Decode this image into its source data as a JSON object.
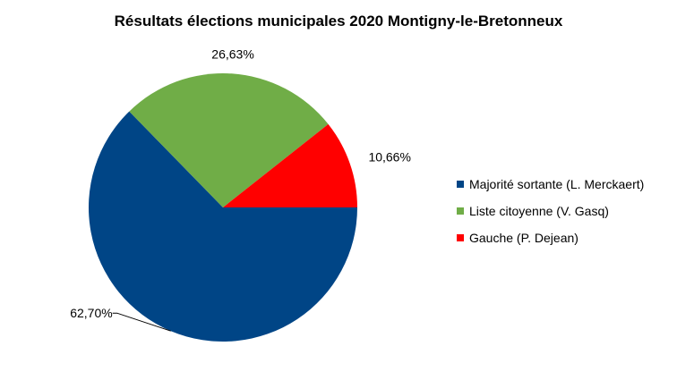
{
  "chart_data": {
    "type": "pie",
    "title": "Résultats élections municipales 2020 Montigny-le-Bretonneux",
    "slices": [
      {
        "name": "Majorité sortante (L. Merckaert)",
        "value": 62.7,
        "label": "62,70%",
        "color": "#004586"
      },
      {
        "name": "Liste citoyenne (V. Gasq)",
        "value": 26.63,
        "label": "26,63%",
        "color": "#70AD47"
      },
      {
        "name": "Gauche (P. Dejean)",
        "value": 10.66,
        "label": "10,66%",
        "color": "#FF0000"
      }
    ],
    "legend_position": "right"
  }
}
